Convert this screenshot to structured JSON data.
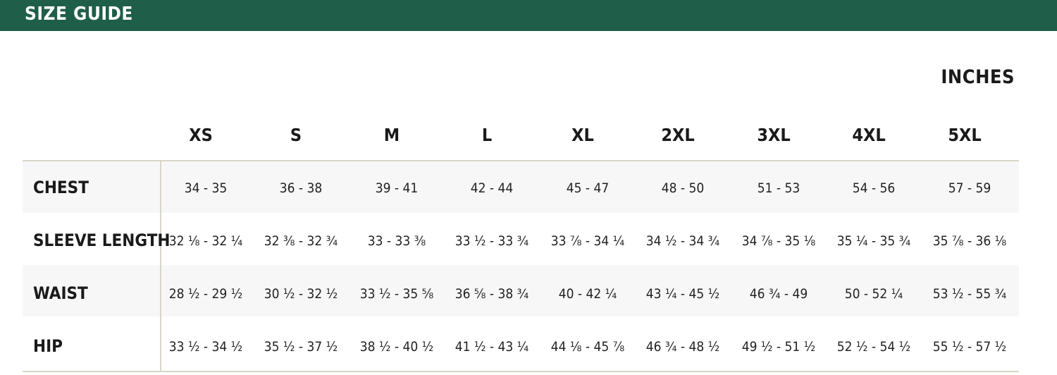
{
  "header": {
    "title": "SIZE GUIDE"
  },
  "unit": "INCHES",
  "sizes": [
    "XS",
    "S",
    "M",
    "L",
    "XL",
    "2XL",
    "3XL",
    "4XL",
    "5XL"
  ],
  "rows": [
    {
      "label": "CHEST",
      "values": [
        "34 - 35",
        "36 - 38",
        "39 - 41",
        "42 - 44",
        "45 - 47",
        "48 - 50",
        "51 - 53",
        "54 - 56",
        "57 - 59"
      ]
    },
    {
      "label": "SLEEVE LENGTH",
      "values": [
        "32 ⅛ - 32 ¼",
        "32 ⅜ - 32 ¾",
        "33 - 33 ⅜",
        "33 ½ - 33 ¾",
        "33 ⅞ - 34 ¼",
        "34 ½ - 34 ¾",
        "34 ⅞ - 35 ⅛",
        "35 ¼ - 35 ¾",
        "35 ⅞ - 36 ⅛"
      ]
    },
    {
      "label": "WAIST",
      "values": [
        "28 ½ - 29 ½",
        "30 ½ - 32 ½",
        "33 ½ - 35 ⅝",
        "36 ⅝ - 38 ¾",
        "40 - 42 ¼",
        "43 ¼ - 45 ½",
        "46 ¾ - 49",
        "50 - 52 ¼",
        "53 ½ - 55 ¾"
      ]
    },
    {
      "label": "HIP",
      "values": [
        "33 ½ - 34 ½",
        "35 ½ - 37 ½",
        "38 ½ - 40 ½",
        "41 ½ - 43 ¼",
        "44 ⅛ - 45 ⅞",
        "46 ¾ - 48 ½",
        "49 ½ - 51 ½",
        "52 ½ - 54 ½",
        "55 ½ - 57 ½"
      ]
    }
  ]
}
